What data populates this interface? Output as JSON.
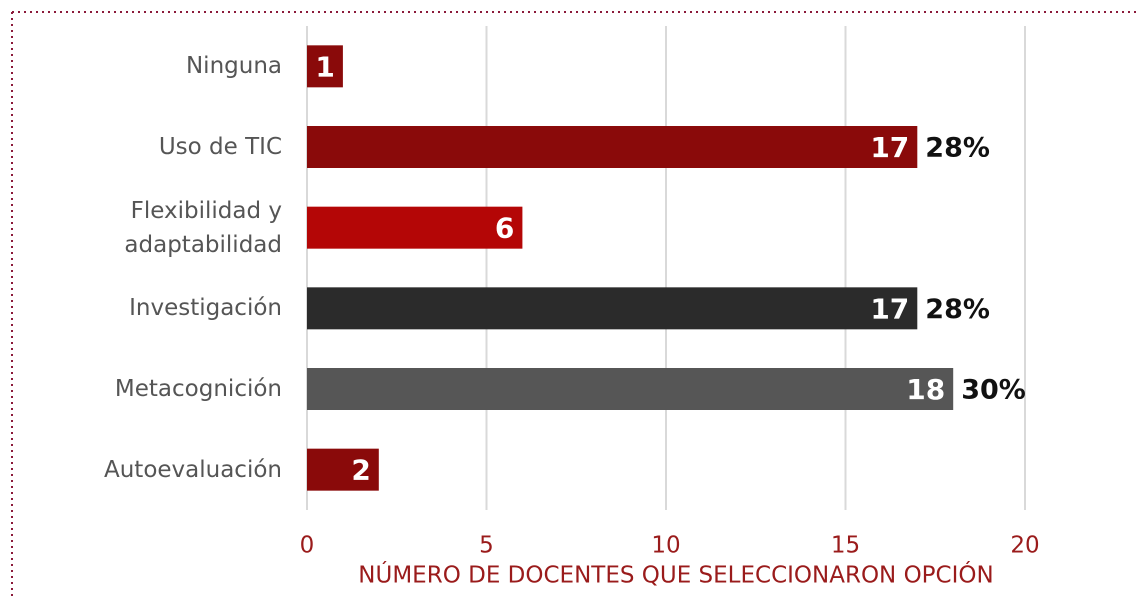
{
  "chart_data": {
    "type": "bar",
    "orientation": "horizontal",
    "categories": [
      "Ninguna",
      "Uso de TIC",
      "Flexibilidad y adaptabilidad",
      "Investigación",
      "Metacognición",
      "Autoevaluación"
    ],
    "values": [
      1,
      17,
      6,
      17,
      18,
      2
    ],
    "colors": [
      "#8a0a0a",
      "#8a0a0a",
      "#b40606",
      "#2b2b2b",
      "#565656",
      "#8a0a0a"
    ],
    "percent_labels": [
      null,
      "28%",
      null,
      "28%",
      "30%",
      null
    ],
    "xlabel": "NÚMERO DE DOCENTES QUE SELECCIONARON OPCIÓN",
    "xlim": [
      0,
      20
    ],
    "xticks": [
      0,
      5,
      10,
      15,
      20
    ],
    "grid": true
  }
}
